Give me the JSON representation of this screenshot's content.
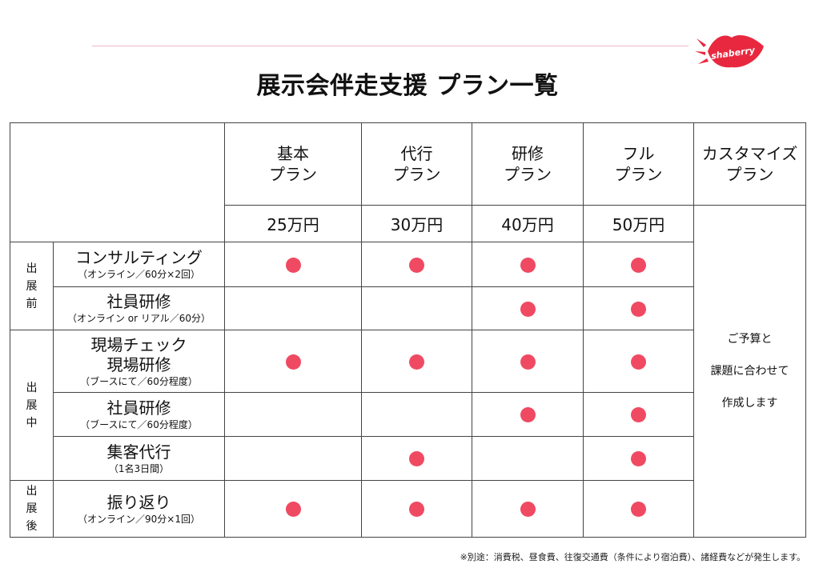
{
  "title": "展示会伴走支援 プラン一覧",
  "logo": {
    "text": "shaberry",
    "color": "#e8283f"
  },
  "accent_color": "#f04a63",
  "plans": [
    {
      "line1": "基本",
      "line2": "プラン",
      "price": "25万円"
    },
    {
      "line1": "代行",
      "line2": "プラン",
      "price": "30万円"
    },
    {
      "line1": "研修",
      "line2": "プラン",
      "price": "40万円"
    },
    {
      "line1": "フル",
      "line2": "プラン",
      "price": "50万円"
    }
  ],
  "custom_plan": {
    "line1": "カスタマイズ",
    "line2": "プラン",
    "note_lines": [
      "ご予算と",
      "課題に合わせて",
      "作成します"
    ]
  },
  "phases": [
    {
      "label_chars": [
        "出",
        "展",
        "前"
      ]
    },
    {
      "label_chars": [
        "出",
        "展",
        "中"
      ]
    },
    {
      "label_chars": [
        "出",
        "展",
        "後"
      ]
    }
  ],
  "rows": [
    {
      "name": "コンサルティング",
      "note": "（オンライン／60分×2回）",
      "marks": [
        true,
        true,
        true,
        true
      ]
    },
    {
      "name": "社員研修",
      "note": "（オンライン or リアル／60分）",
      "marks": [
        false,
        false,
        true,
        true
      ]
    },
    {
      "name_lines": [
        "現場チェック",
        "現場研修"
      ],
      "note": "（ブースにて／60分程度）",
      "marks": [
        true,
        true,
        true,
        true
      ]
    },
    {
      "name": "社員研修",
      "note": "（ブースにて／60分程度）",
      "marks": [
        false,
        false,
        true,
        true
      ]
    },
    {
      "name": "集客代行",
      "note": "（1名3日間）",
      "marks": [
        false,
        true,
        false,
        true
      ]
    },
    {
      "name": "振り返り",
      "note": "（オンライン／90分×1回）",
      "marks": [
        true,
        true,
        true,
        true
      ]
    }
  ],
  "footnote": "※別途：消費税、昼食費、往復交通費（条件により宿泊費）、諸経費などが発生します。"
}
